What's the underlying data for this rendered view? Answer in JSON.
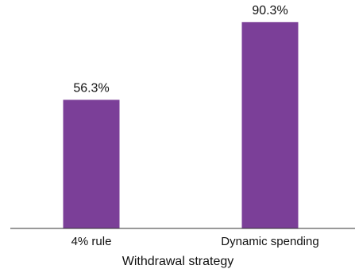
{
  "chart_data": {
    "type": "bar",
    "categories": [
      "4% rule",
      "Dynamic spending"
    ],
    "values": [
      56.3,
      90.3
    ],
    "data_labels": [
      "56.3%",
      "90.3%"
    ],
    "xlabel": "Withdrawal strategy",
    "ylabel": "",
    "ylim": [
      0,
      100
    ],
    "grid": false,
    "bar_color": "#7b3f98",
    "axis_color": "#333333"
  }
}
